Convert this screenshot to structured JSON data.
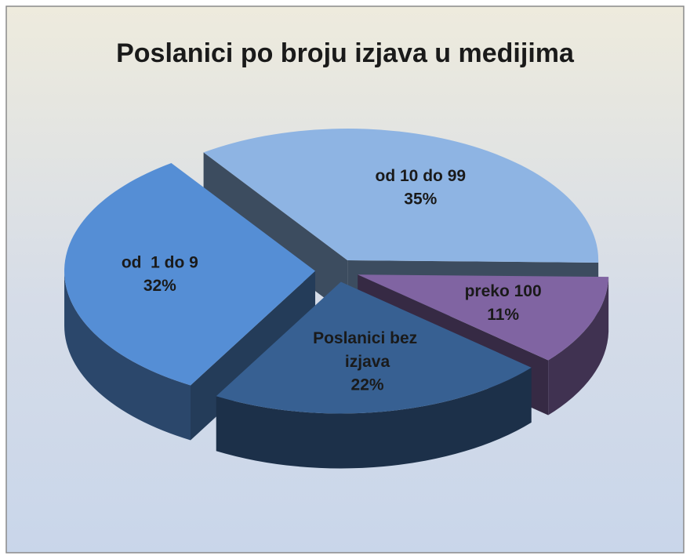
{
  "chart_data": {
    "type": "pie",
    "title": "Poslanici po broju izjava u medijima",
    "categories": [
      "od 10 do 99",
      "preko 100",
      "Poslanici bez izjava",
      "od  1 do 9"
    ],
    "values": [
      35,
      11,
      22,
      32
    ],
    "value_labels": [
      "35%",
      "11%",
      "22%",
      "32%"
    ],
    "colors": [
      "#8eb4e3",
      "#8064a2",
      "#376092",
      "#558ed5"
    ]
  }
}
